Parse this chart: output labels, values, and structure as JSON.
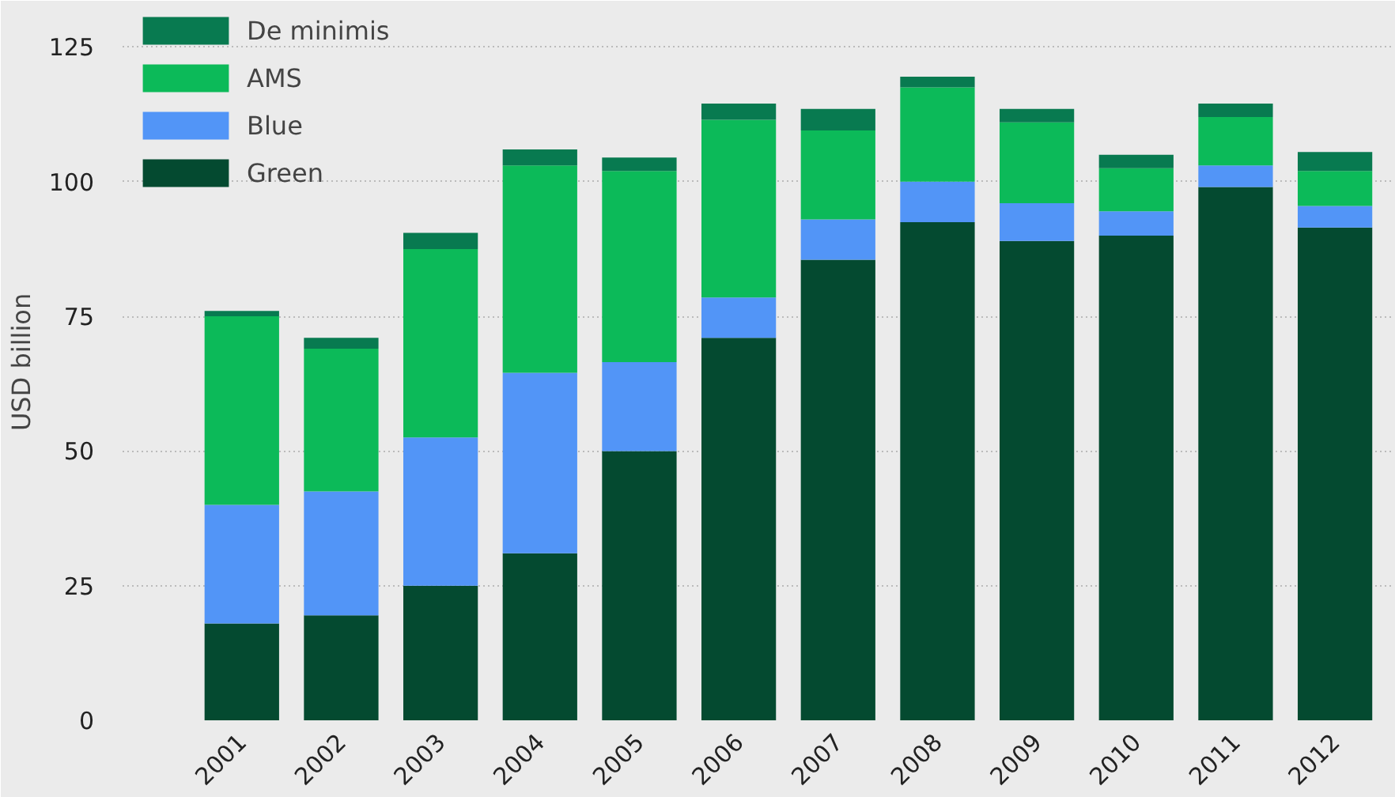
{
  "chart_data": {
    "type": "bar",
    "stacked": true,
    "ylabel": "USD billion",
    "categories": [
      "2001",
      "2002",
      "2003",
      "2004",
      "2005",
      "2006",
      "2007",
      "2008",
      "2009",
      "2010",
      "2011",
      "2012"
    ],
    "series": [
      {
        "name": "Green",
        "color": "#044a30",
        "values": [
          18,
          19.5,
          25,
          31,
          50,
          71,
          85.5,
          92.5,
          89,
          90,
          99,
          91.5
        ]
      },
      {
        "name": "Blue",
        "color": "#5295f7",
        "values": [
          22,
          23,
          27.5,
          33.5,
          16.5,
          7.5,
          7.5,
          7.5,
          7,
          4.5,
          4,
          4
        ]
      },
      {
        "name": "AMS",
        "color": "#0cba59",
        "values": [
          35,
          26.5,
          35,
          38.5,
          35.5,
          33,
          16.5,
          17.5,
          15,
          8,
          9,
          6.5
        ]
      },
      {
        "name": "De minimis",
        "color": "#087a50",
        "values": [
          1,
          2,
          3,
          3,
          2.5,
          3,
          4,
          2,
          2.5,
          2.5,
          2.5,
          3.5
        ]
      }
    ],
    "ylim": [
      0,
      133
    ],
    "yticks": [
      0,
      25,
      50,
      75,
      100,
      125
    ],
    "grid": "y",
    "legend": "top left"
  }
}
